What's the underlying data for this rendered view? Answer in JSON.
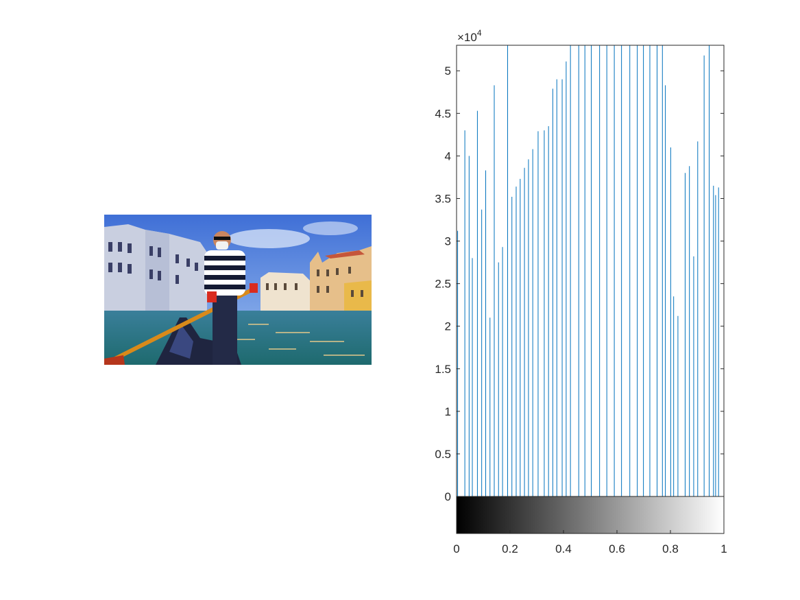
{
  "figure": {
    "image_panel": {
      "description_icon": "photo-icon"
    },
    "colors": {
      "bar": "#0072BD",
      "axis": "#262626",
      "background": "#ffffff"
    }
  },
  "chart_data": {
    "type": "bar",
    "title": "",
    "xlabel": "",
    "ylabel": "",
    "exponent_label": "×10",
    "exponent_power": "4",
    "xlim": [
      0,
      1
    ],
    "ylim": [
      0,
      53000
    ],
    "y_ticks": [
      0,
      5000,
      10000,
      15000,
      20000,
      25000,
      30000,
      35000,
      40000,
      45000,
      50000
    ],
    "y_tick_labels": [
      "0",
      "0.5",
      "1",
      "1.5",
      "2",
      "2.5",
      "3",
      "3.5",
      "4",
      "4.5",
      "5"
    ],
    "x_ticks": [
      0,
      0.2,
      0.4,
      0.6,
      0.8,
      1
    ],
    "x_tick_labels": [
      "0",
      "0.2",
      "0.4",
      "0.6",
      "0.8",
      "1"
    ],
    "colorbar": "gray",
    "x": [
      0.004,
      0.031,
      0.047,
      0.059,
      0.078,
      0.094,
      0.109,
      0.125,
      0.141,
      0.157,
      0.172,
      0.191,
      0.207,
      0.223,
      0.238,
      0.254,
      0.269,
      0.285,
      0.305,
      0.328,
      0.344,
      0.36,
      0.375,
      0.395,
      0.41,
      0.426,
      0.457,
      0.48,
      0.504,
      0.535,
      0.562,
      0.59,
      0.617,
      0.648,
      0.676,
      0.699,
      0.723,
      0.75,
      0.77,
      0.781,
      0.801,
      0.812,
      0.828,
      0.855,
      0.871,
      0.887,
      0.902,
      0.926,
      0.945,
      0.961,
      0.969,
      0.98
    ],
    "values": [
      31200,
      43000,
      40000,
      28000,
      45300,
      33700,
      38300,
      21000,
      48300,
      27500,
      29300,
      53000,
      35200,
      36400,
      37300,
      38600,
      39600,
      40800,
      42900,
      43000,
      43500,
      47900,
      49000,
      49000,
      51100,
      53000,
      53000,
      53000,
      53000,
      53000,
      53000,
      53000,
      53000,
      53000,
      53000,
      53000,
      53000,
      53000,
      53000,
      48300,
      41000,
      23500,
      21200,
      38000,
      38800,
      28200,
      41700,
      51800,
      53000,
      36500,
      35400,
      36300
    ]
  }
}
